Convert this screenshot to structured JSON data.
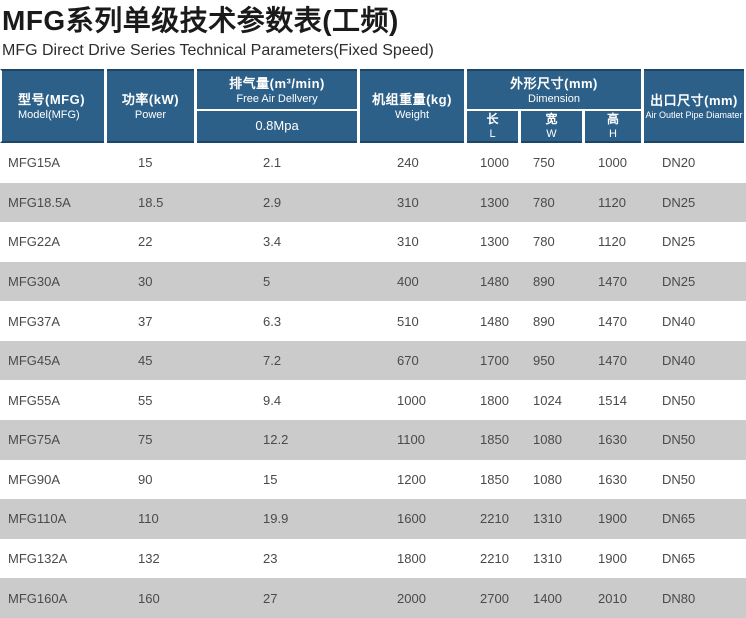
{
  "page": {
    "title": "MFG系列单级技术参数表(工频)",
    "subtitle": "MFG Direct Drive Series Technical Parameters(Fixed Speed)"
  },
  "table": {
    "header": {
      "model": {
        "cn": "型号(MFG)",
        "en": "Model(MFG)"
      },
      "power": {
        "cn": "功率(kW)",
        "en": "Power"
      },
      "fad": {
        "cn": "排气量(m³/min)",
        "en": "Free Air Dellvery",
        "pressure": "0.8Mpa"
      },
      "weight": {
        "cn": "机组重量(kg)",
        "en": "Weight"
      },
      "dimension": {
        "cn": "外形尺寸(mm)",
        "en": "Dimension",
        "length": {
          "cn": "长",
          "en": "L"
        },
        "width": {
          "cn": "宽",
          "en": "W"
        },
        "height": {
          "cn": "高",
          "en": "H"
        }
      },
      "outlet": {
        "cn": "出口尺寸(mm)",
        "en": "Air Outlet Pipe Diamater"
      }
    },
    "rows": [
      {
        "model": "MFG15A",
        "power": "15",
        "fad": "2.1",
        "weight": "240",
        "l": "1000",
        "w": "750",
        "h": "1000",
        "outlet": "DN20"
      },
      {
        "model": "MFG18.5A",
        "power": "18.5",
        "fad": "2.9",
        "weight": "310",
        "l": "1300",
        "w": "780",
        "h": "1120",
        "outlet": "DN25"
      },
      {
        "model": "MFG22A",
        "power": "22",
        "fad": "3.4",
        "weight": "310",
        "l": "1300",
        "w": "780",
        "h": "1120",
        "outlet": "DN25"
      },
      {
        "model": "MFG30A",
        "power": "30",
        "fad": "5",
        "weight": "400",
        "l": "1480",
        "w": "890",
        "h": "1470",
        "outlet": "DN25"
      },
      {
        "model": "MFG37A",
        "power": "37",
        "fad": "6.3",
        "weight": "510",
        "l": "1480",
        "w": "890",
        "h": "1470",
        "outlet": "DN40"
      },
      {
        "model": "MFG45A",
        "power": "45",
        "fad": "7.2",
        "weight": "670",
        "l": "1700",
        "w": "950",
        "h": "1470",
        "outlet": "DN40"
      },
      {
        "model": "MFG55A",
        "power": "55",
        "fad": "9.4",
        "weight": "1000",
        "l": "1800",
        "w": "1024",
        "h": "1514",
        "outlet": "DN50"
      },
      {
        "model": "MFG75A",
        "power": "75",
        "fad": "12.2",
        "weight": "1100",
        "l": "1850",
        "w": "1080",
        "h": "1630",
        "outlet": "DN50"
      },
      {
        "model": "MFG90A",
        "power": "90",
        "fad": "15",
        "weight": "1200",
        "l": "1850",
        "w": "1080",
        "h": "1630",
        "outlet": "DN50"
      },
      {
        "model": "MFG110A",
        "power": "110",
        "fad": "19.9",
        "weight": "1600",
        "l": "2210",
        "w": "1310",
        "h": "1900",
        "outlet": "DN65"
      },
      {
        "model": "MFG132A",
        "power": "132",
        "fad": "23",
        "weight": "1800",
        "l": "2210",
        "w": "1310",
        "h": "1900",
        "outlet": "DN65"
      },
      {
        "model": "MFG160A",
        "power": "160",
        "fad": "27",
        "weight": "2000",
        "l": "2700",
        "w": "1400",
        "h": "2010",
        "outlet": "DN80"
      }
    ]
  },
  "colors": {
    "header_bg": "#2d6089",
    "header_edge": "#1c4566",
    "row_alt_bg": "#cbcbcb",
    "row_text": "#4a4a4a",
    "title_text": "#1a1a1a"
  }
}
